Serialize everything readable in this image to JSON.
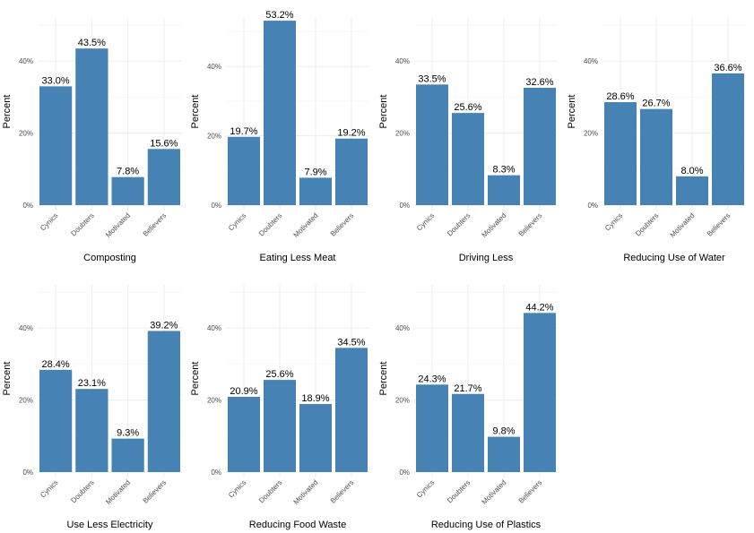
{
  "chart_data": [
    {
      "type": "bar",
      "title": "",
      "xlabel": "Composting",
      "ylabel": "Percent",
      "categories": [
        "Cynics",
        "Doubters",
        "Motivated",
        "Believers"
      ],
      "values": [
        33.0,
        43.5,
        7.8,
        15.6
      ],
      "value_labels": [
        "33.0%",
        "43.5%",
        "7.8%",
        "15.6%"
      ],
      "yticks": [
        "0%",
        "20%",
        "40%"
      ],
      "ylim": [
        0,
        52
      ],
      "grid": true
    },
    {
      "type": "bar",
      "title": "",
      "xlabel": "Eating Less Meat",
      "ylabel": "Percent",
      "categories": [
        "Cynics",
        "Doubters",
        "Motivated",
        "Believers"
      ],
      "values": [
        19.7,
        53.2,
        7.9,
        19.2
      ],
      "value_labels": [
        "19.7%",
        "53.2%",
        "7.9%",
        "19.2%"
      ],
      "yticks": [
        "0%",
        "20%",
        "40%"
      ],
      "ylim": [
        0,
        54
      ],
      "grid": true
    },
    {
      "type": "bar",
      "title": "",
      "xlabel": "Driving Less",
      "ylabel": "Percent",
      "categories": [
        "Cynics",
        "Doubters",
        "Motivated",
        "Believers"
      ],
      "values": [
        33.5,
        25.6,
        8.3,
        32.6
      ],
      "value_labels": [
        "33.5%",
        "25.6%",
        "8.3%",
        "32.6%"
      ],
      "yticks": [
        "0%",
        "20%",
        "40%"
      ],
      "ylim": [
        0,
        52
      ],
      "grid": true
    },
    {
      "type": "bar",
      "title": "",
      "xlabel": "Reducing Use of Water",
      "ylabel": "Percent",
      "categories": [
        "Cynics",
        "Doubters",
        "Motivated",
        "Believers"
      ],
      "values": [
        28.6,
        26.7,
        8.0,
        36.6
      ],
      "value_labels": [
        "28.6%",
        "26.7%",
        "8.0%",
        "36.6%"
      ],
      "yticks": [
        "0%",
        "20%",
        "40%"
      ],
      "ylim": [
        0,
        52
      ],
      "grid": true
    },
    {
      "type": "bar",
      "title": "",
      "xlabel": "Use Less Electricity",
      "ylabel": "Percent",
      "categories": [
        "Cynics",
        "Doubters",
        "Motivated",
        "Believers"
      ],
      "values": [
        28.4,
        23.1,
        9.3,
        39.2
      ],
      "value_labels": [
        "28.4%",
        "23.1%",
        "9.3%",
        "39.2%"
      ],
      "yticks": [
        "0%",
        "20%",
        "40%"
      ],
      "ylim": [
        0,
        52
      ],
      "grid": true
    },
    {
      "type": "bar",
      "title": "",
      "xlabel": "Reducing Food Waste",
      "ylabel": "Percent",
      "categories": [
        "Cynics",
        "Doubters",
        "Motivated",
        "Believers"
      ],
      "values": [
        20.9,
        25.6,
        18.9,
        34.5
      ],
      "value_labels": [
        "20.9%",
        "25.6%",
        "18.9%",
        "34.5%"
      ],
      "yticks": [
        "0%",
        "20%",
        "40%"
      ],
      "ylim": [
        0,
        52
      ],
      "grid": true
    },
    {
      "type": "bar",
      "title": "",
      "xlabel": "Reducing Use of Plastics",
      "ylabel": "Percent",
      "categories": [
        "Cynics",
        "Doubters",
        "Motivated",
        "Believers"
      ],
      "values": [
        24.3,
        21.7,
        9.8,
        44.2
      ],
      "value_labels": [
        "24.3%",
        "21.7%",
        "9.8%",
        "44.2%"
      ],
      "yticks": [
        "0%",
        "20%",
        "40%"
      ],
      "ylim": [
        0,
        52
      ],
      "grid": true
    }
  ],
  "colors": {
    "bar": "#4682B4",
    "grid": "#ebebeb",
    "tick_text": "#4d4d4d",
    "text": "#000000"
  }
}
